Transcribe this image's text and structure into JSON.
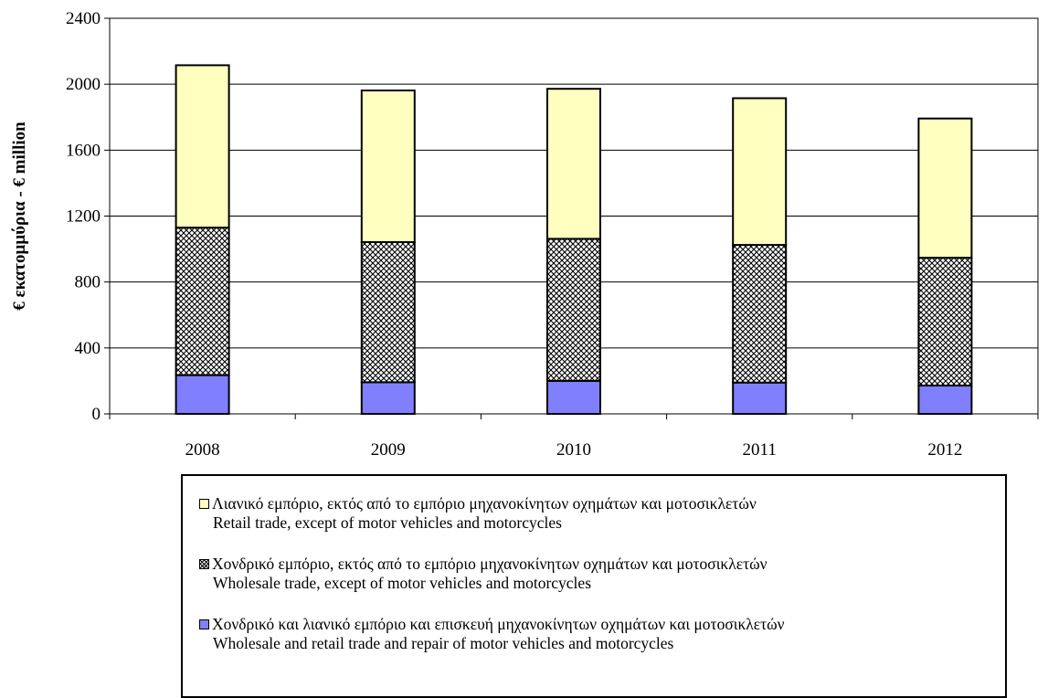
{
  "chart_data": {
    "type": "bar",
    "stacked": true,
    "categories": [
      "2008",
      "2009",
      "2010",
      "2011",
      "2012"
    ],
    "series": [
      {
        "key": "wholesale_retail_repair_motor",
        "name_line1": "Χονδρικό και λιανικό εμπόριο και επισκευή μηχανοκίνητων οχημάτων και μοτοσικλετών",
        "name_line2": "Wholesale and retail trade and repair of motor vehicles and motorcycles",
        "values": [
          235,
          192,
          200,
          190,
          172
        ],
        "color": "#8080FF",
        "pattern": "solid"
      },
      {
        "key": "wholesale_except_motor",
        "name_line1": "Χονδρικό εμπόριο, εκτός από το εμπόριο μηχανοκίνητων οχημάτων και μοτοσικλετών",
        "name_line2": "Wholesale trade, except of motor vehicles and motorcycles",
        "values": [
          895,
          850,
          862,
          835,
          775
        ],
        "color": "#C0C0C0",
        "pattern": "crosshatch"
      },
      {
        "key": "retail_except_motor",
        "name_line1": "Λιανικό εμπόριο, εκτός από το εμπόριο μηχανοκίνητων οχημάτων και μοτοσικλετών",
        "name_line2": "Retail trade, except of motor vehicles and motorcycles",
        "values": [
          985,
          920,
          910,
          890,
          845
        ],
        "color": "#FFFFC0",
        "pattern": "solid"
      }
    ],
    "legend_order": [
      "retail_except_motor",
      "wholesale_except_motor",
      "wholesale_retail_repair_motor"
    ],
    "ylabel": "€ εκατομμύρια - € million",
    "xlabel": "",
    "ylim": [
      0,
      2400
    ],
    "yticks": [
      0,
      400,
      800,
      1200,
      1600,
      2000,
      2400
    ],
    "grid": "horizontal",
    "legend_position": "bottom"
  }
}
